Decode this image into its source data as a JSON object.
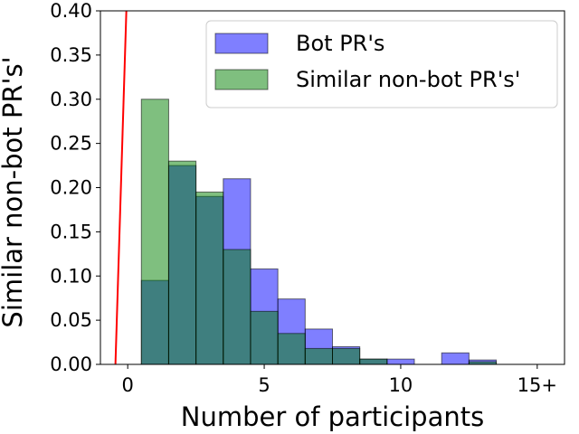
{
  "chart_data": {
    "type": "bar",
    "xlabel": "Number of participants",
    "ylabel": "Similar non-bot PR's'",
    "xlim": [
      -1,
      16
    ],
    "ylim": [
      0,
      0.4
    ],
    "x_ticks": [
      0,
      5,
      10,
      15
    ],
    "x_tick_labels": [
      "0",
      "5",
      "10",
      "15+"
    ],
    "y_ticks": [
      0.0,
      0.05,
      0.1,
      0.15,
      0.2,
      0.25,
      0.3,
      0.35,
      0.4
    ],
    "y_tick_labels": [
      "0.00",
      "0.05",
      "0.10",
      "0.15",
      "0.20",
      "0.25",
      "0.30",
      "0.35",
      "0.40"
    ],
    "bins": [
      1,
      2,
      3,
      4,
      5,
      6,
      7,
      8,
      9,
      10,
      11,
      12,
      13,
      14,
      15
    ],
    "series": [
      {
        "name": "Bot PR's",
        "color": "#0000ff",
        "opacity": 0.5,
        "values": [
          0.095,
          0.225,
          0.19,
          0.21,
          0.108,
          0.074,
          0.04,
          0.02,
          0.006,
          0.006,
          0.0,
          0.013,
          0.005,
          0.0,
          0.0
        ]
      },
      {
        "name": "Similar non-bot PR's'",
        "color": "#008000",
        "opacity": 0.5,
        "values": [
          0.3,
          0.23,
          0.195,
          0.13,
          0.06,
          0.035,
          0.018,
          0.018,
          0.006,
          0.0,
          0.0,
          0.0,
          0.003,
          0.0,
          0.0
        ]
      }
    ],
    "reference_line": {
      "color": "#ff0000",
      "x1": -0.45,
      "y1": 0.0,
      "x2": -0.05,
      "y2": 0.4
    },
    "legend_position": "top-right",
    "grid": false
  }
}
